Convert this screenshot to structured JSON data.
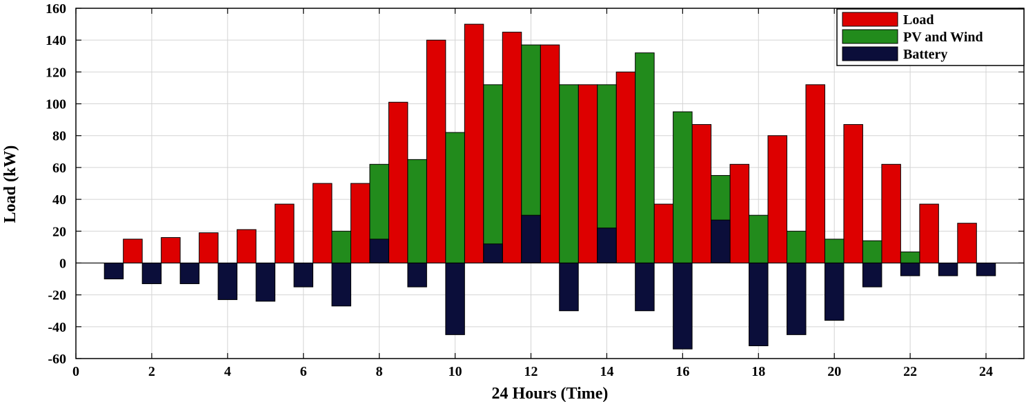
{
  "chart_data": {
    "type": "bar",
    "xlabel": "24 Hours (Time)",
    "ylabel": "Load (kW)",
    "xlim": [
      0,
      25
    ],
    "ylim": [
      -60,
      160
    ],
    "x_ticks": [
      0,
      2,
      4,
      6,
      8,
      10,
      12,
      14,
      16,
      18,
      20,
      22,
      24
    ],
    "y_ticks": [
      -60,
      -40,
      -20,
      0,
      20,
      40,
      60,
      80,
      100,
      120,
      140,
      160
    ],
    "grid": true,
    "legend_position": "top-right",
    "x": [
      1,
      2,
      3,
      4,
      5,
      6,
      7,
      8,
      9,
      10,
      11,
      12,
      13,
      14,
      15,
      16,
      17,
      18,
      19,
      20,
      21,
      22,
      23,
      24
    ],
    "series": [
      {
        "name": "Load",
        "color": "#dd0000",
        "offset": 0.5,
        "values": [
          15,
          16,
          19,
          21,
          37,
          50,
          50,
          101,
          140,
          150,
          145,
          137,
          112,
          120,
          37,
          87,
          62,
          80,
          112,
          87,
          62,
          37,
          25,
          0
        ]
      },
      {
        "name": "PV and Wind",
        "color": "#228b1c",
        "offset": 0,
        "values": [
          0,
          0,
          0,
          0,
          0,
          0,
          20,
          62,
          65,
          82,
          112,
          137,
          112,
          112,
          132,
          95,
          55,
          30,
          20,
          15,
          14,
          7,
          0,
          0
        ]
      },
      {
        "name": "Battery",
        "color": "#0b0e3a",
        "offset": 0,
        "values": [
          -10,
          -13,
          -13,
          -23,
          -24,
          -15,
          -27,
          15,
          -15,
          -45,
          12,
          30,
          -30,
          22,
          -30,
          -54,
          27,
          -52,
          -45,
          -36,
          -15,
          -8,
          -8,
          -8
        ]
      }
    ]
  }
}
